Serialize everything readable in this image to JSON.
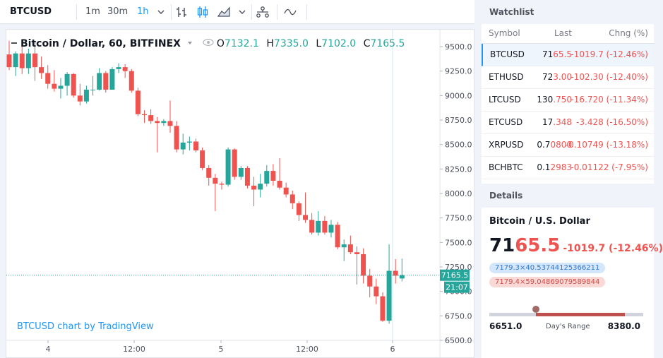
{
  "toolbar": {
    "symbol": "BTCUSD",
    "intervals": [
      "1m",
      "30m",
      "1h"
    ],
    "active_interval": "1h"
  },
  "legend": {
    "title": "Bitcoin / Dollar, 60, BITFINEX",
    "o_label": "O",
    "o_value": "7132.1",
    "h_label": "H",
    "h_value": "7335.0",
    "l_label": "L",
    "l_value": "7102.0",
    "c_label": "C",
    "c_value": "7165.5"
  },
  "watermark": "BTCUSD chart by TradingView",
  "colors": {
    "up": "#26a69a",
    "down": "#ef5350",
    "accent": "#2196f3"
  },
  "chart_data": {
    "type": "candlestick",
    "ylim": [
      6500,
      9600
    ],
    "y_ticks": [
      "9500.0",
      "9250.0",
      "9000.0",
      "8750.0",
      "8500.0",
      "8250.0",
      "8000.0",
      "7750.0",
      "7500.0",
      "7250.0",
      "7000.0",
      "6750.0",
      "6500.0"
    ],
    "x_ticks": [
      "4",
      "12:00",
      "5",
      "12:00",
      "6"
    ],
    "last_price_label": "7165.5",
    "countdown_label": "21:07",
    "candles": [
      [
        9420,
        9560,
        9260,
        9290
      ],
      [
        9290,
        9450,
        9200,
        9430
      ],
      [
        9430,
        9500,
        9220,
        9280
      ],
      [
        9280,
        9480,
        9220,
        9430
      ],
      [
        9430,
        9560,
        9150,
        9290
      ],
      [
        9290,
        9400,
        9170,
        9230
      ],
      [
        9230,
        9310,
        9070,
        9120
      ],
      [
        9120,
        9260,
        9040,
        9070
      ],
      [
        9070,
        9180,
        8970,
        9100
      ],
      [
        9100,
        9240,
        9000,
        9220
      ],
      [
        9220,
        9230,
        8980,
        9000
      ],
      [
        9000,
        9120,
        8900,
        8940
      ],
      [
        8940,
        9100,
        8920,
        9060
      ],
      [
        9060,
        9200,
        9000,
        9060
      ],
      [
        9060,
        9280,
        9050,
        9230
      ],
      [
        9230,
        9250,
        9030,
        9060
      ],
      [
        9060,
        9290,
        9060,
        9270
      ],
      [
        9270,
        9330,
        9230,
        9290
      ],
      [
        9290,
        9320,
        9180,
        9250
      ],
      [
        9250,
        9270,
        9030,
        9050
      ],
      [
        9050,
        9080,
        8790,
        8810
      ],
      [
        8810,
        8850,
        8720,
        8800
      ],
      [
        8800,
        8860,
        8710,
        8740
      ],
      [
        8740,
        8780,
        8420,
        8720
      ],
      [
        8720,
        8760,
        8690,
        8740
      ],
      [
        8740,
        8950,
        8620,
        8690
      ],
      [
        8690,
        8740,
        8420,
        8450
      ],
      [
        8450,
        8610,
        8400,
        8520
      ],
      [
        8520,
        8580,
        8440,
        8530
      ],
      [
        8530,
        8560,
        8420,
        8440
      ],
      [
        8440,
        8470,
        8240,
        8260
      ],
      [
        8260,
        8290,
        8080,
        8160
      ],
      [
        8160,
        8200,
        7820,
        8100
      ],
      [
        8100,
        8120,
        8040,
        8090
      ],
      [
        8090,
        8470,
        8070,
        8450
      ],
      [
        8450,
        8460,
        8140,
        8170
      ],
      [
        8170,
        8280,
        8140,
        8260
      ],
      [
        8260,
        8280,
        8050,
        8080
      ],
      [
        8080,
        8170,
        7870,
        8040
      ],
      [
        8040,
        8200,
        7960,
        8100
      ],
      [
        8100,
        8290,
        8070,
        8230
      ],
      [
        8230,
        8300,
        8080,
        8130
      ],
      [
        8130,
        8360,
        8040,
        8060
      ],
      [
        8060,
        8110,
        7960,
        7990
      ],
      [
        7990,
        8030,
        7840,
        7900
      ],
      [
        7900,
        7920,
        7720,
        7780
      ],
      [
        7780,
        8010,
        7700,
        7730
      ],
      [
        7730,
        7800,
        7580,
        7600
      ],
      [
        7600,
        7820,
        7570,
        7720
      ],
      [
        7720,
        7770,
        7580,
        7600
      ],
      [
        7600,
        7730,
        7550,
        7680
      ],
      [
        7680,
        7710,
        7430,
        7450
      ],
      [
        7450,
        7530,
        7310,
        7480
      ],
      [
        7480,
        7570,
        7380,
        7400
      ],
      [
        7400,
        7460,
        7070,
        7380
      ],
      [
        7380,
        7440,
        7080,
        7160
      ],
      [
        7160,
        7230,
        6940,
        7050
      ],
      [
        7050,
        7130,
        6870,
        6950
      ],
      [
        6950,
        6990,
        6690,
        6700
      ],
      [
        6700,
        7480,
        6670,
        7210
      ],
      [
        7210,
        7330,
        7080,
        7160
      ],
      [
        7132.1,
        7335.0,
        7102.0,
        7165.5
      ]
    ]
  },
  "watchlist": {
    "title": "Watchlist",
    "headers": {
      "symbol": "Symbol",
      "last": "Last",
      "change": "Chng (%)"
    },
    "rows": [
      {
        "symbol": "BTCUSD",
        "last": "7165.5",
        "change": "-1019.7 (-12.46%)",
        "selected": true
      },
      {
        "symbol": "ETHUSD",
        "last": "723.00",
        "change": "-102.30 (-12.40%)"
      },
      {
        "symbol": "LTCUSD",
        "last": "130.750",
        "change": "-16.720 (-11.34%)"
      },
      {
        "symbol": "ETCUSD",
        "last": "17.348",
        "change": "-3.428 (-16.50%)"
      },
      {
        "symbol": "XRPUSD",
        "last": "0.70800",
        "change": "-0.10749 (-13.18%)"
      },
      {
        "symbol": "BCHBTC",
        "last": "0.12983",
        "change": "-0.01122 (-7.95%)"
      }
    ]
  },
  "details": {
    "title": "Details",
    "name": "Bitcoin / U.S. Dollar",
    "price": "7165.5",
    "change": "-1019.7 (-12.46%)",
    "bid": "7179.3×40.53744125366211",
    "ask": "7179.4×59.04869079589844",
    "range_low": "6651.0",
    "range_label": "Day's Range",
    "range_high": "8380.0"
  }
}
